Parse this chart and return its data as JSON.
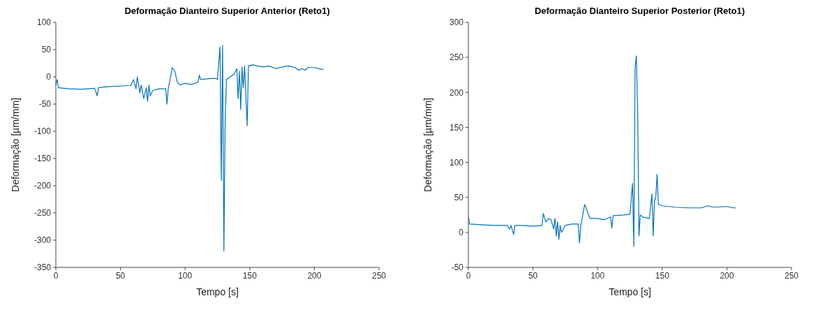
{
  "chart_data": [
    {
      "type": "line",
      "title": "Deformação Dianteiro Superior Anterior (Reto1)",
      "xlabel": "Tempo [s]",
      "ylabel": "Deformação [µm/mm]",
      "xlim": [
        0,
        250
      ],
      "xticks": [
        0,
        50,
        100,
        150,
        200,
        250
      ],
      "ylim": [
        -350,
        100
      ],
      "yticks": [
        -350,
        -300,
        -250,
        -200,
        -150,
        -100,
        -50,
        0,
        50,
        100
      ],
      "marker": "none",
      "line_style": "solid",
      "series": [
        {
          "color": "#0072bd",
          "x": [
            0,
            1,
            2,
            10,
            20,
            30,
            32,
            33,
            40,
            50,
            58,
            60,
            62,
            63,
            65,
            66,
            68,
            70,
            71,
            72,
            73,
            75,
            80,
            85,
            86,
            87,
            88,
            90,
            92,
            94,
            96,
            100,
            105,
            110,
            111,
            112,
            120,
            124,
            125,
            126,
            127,
            128,
            129,
            130,
            131,
            132,
            135,
            138,
            140,
            141,
            142,
            143,
            144,
            145,
            146,
            148,
            149,
            150,
            152,
            160,
            165,
            170,
            175,
            180,
            185,
            188,
            190,
            193,
            195,
            200,
            205,
            207
          ],
          "values": [
            -15,
            -5,
            -20,
            -22,
            -23,
            -21,
            -35,
            -20,
            -18,
            -17,
            -16,
            -5,
            -22,
            0,
            -30,
            -15,
            -40,
            -20,
            -45,
            -15,
            -35,
            -25,
            -22,
            -22,
            -50,
            -20,
            -10,
            17,
            10,
            -10,
            -15,
            -12,
            -14,
            -10,
            3,
            -5,
            -3,
            -3,
            -5,
            25,
            55,
            -190,
            58,
            -320,
            -75,
            -5,
            0,
            5,
            15,
            -40,
            10,
            -60,
            18,
            -20,
            20,
            -90,
            20,
            20,
            22,
            18,
            20,
            15,
            18,
            20,
            17,
            12,
            15,
            12,
            17,
            17,
            14,
            14
          ]
        }
      ]
    },
    {
      "type": "line",
      "title": "Deformação Dianteiro Superior Posterior (Reto1)",
      "xlabel": "Tempo [s]",
      "ylabel": "Deformação [µm/mm]",
      "xlim": [
        0,
        250
      ],
      "xticks": [
        0,
        50,
        100,
        150,
        200,
        250
      ],
      "ylim": [
        -50,
        300
      ],
      "yticks": [
        -50,
        0,
        50,
        100,
        150,
        200,
        250,
        300
      ],
      "marker": "none",
      "line_style": "solid",
      "series": [
        {
          "color": "#0072bd",
          "x": [
            0,
            1,
            10,
            20,
            30,
            32,
            33,
            35,
            36,
            40,
            50,
            57,
            58,
            60,
            62,
            64,
            66,
            67,
            68,
            69,
            70,
            71,
            72,
            75,
            80,
            85,
            86,
            87,
            90,
            92,
            94,
            100,
            105,
            110,
            111,
            112,
            120,
            125,
            127,
            128,
            129,
            130,
            131,
            132,
            133,
            135,
            140,
            142,
            143,
            144,
            145,
            146,
            147,
            150,
            160,
            170,
            180,
            185,
            190,
            200,
            205,
            207
          ],
          "values": [
            22,
            12,
            11,
            10,
            10,
            5,
            10,
            -3,
            10,
            10,
            9,
            10,
            27,
            15,
            20,
            18,
            5,
            20,
            -5,
            15,
            -10,
            10,
            0,
            10,
            12,
            12,
            -15,
            10,
            40,
            30,
            20,
            20,
            18,
            22,
            6,
            24,
            25,
            26,
            70,
            -20,
            235,
            252,
            170,
            -5,
            25,
            22,
            20,
            55,
            -5,
            45,
            50,
            83,
            40,
            38,
            36,
            35,
            35,
            38,
            36,
            37,
            35,
            35
          ]
        }
      ]
    }
  ]
}
